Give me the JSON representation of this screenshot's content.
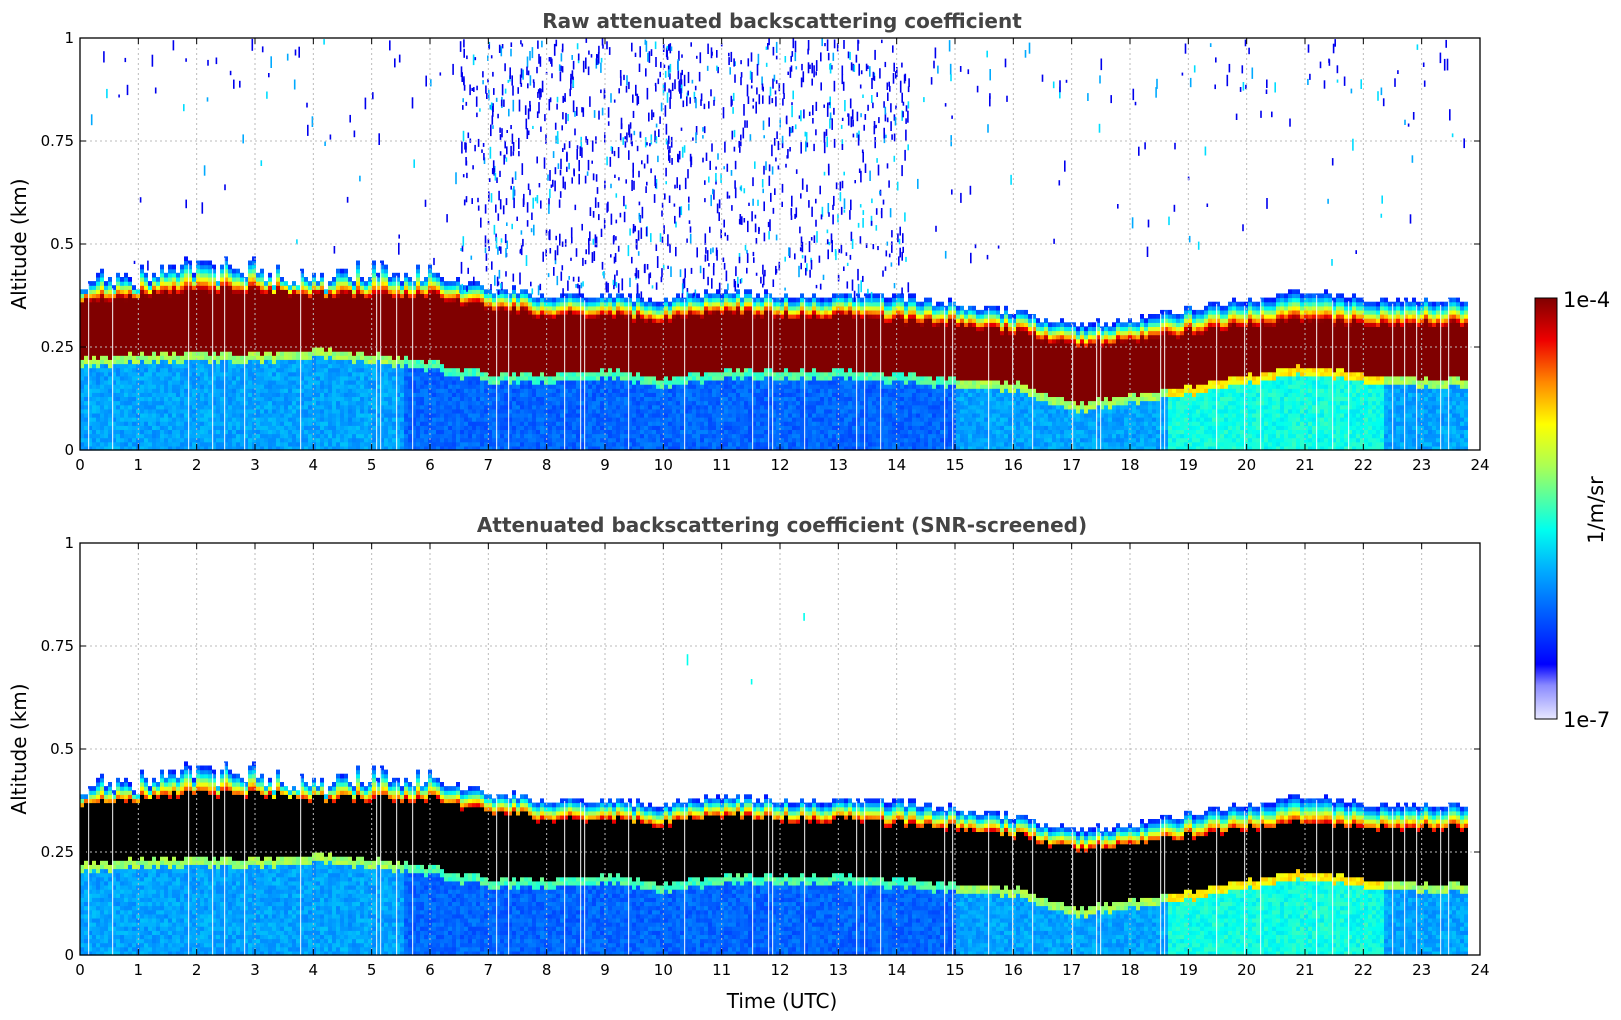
{
  "chart_data": [
    {
      "type": "heatmap",
      "title": "Raw attenuated backscattering coefficient",
      "xlabel": "",
      "ylabel": "Altitude (km)",
      "xlim": [
        0,
        24
      ],
      "ylim": [
        0,
        1
      ],
      "x_ticks": [
        "0",
        "1",
        "2",
        "3",
        "4",
        "5",
        "6",
        "7",
        "8",
        "9",
        "10",
        "11",
        "12",
        "13",
        "14",
        "15",
        "16",
        "17",
        "18",
        "19",
        "20",
        "21",
        "22",
        "23",
        "24"
      ],
      "y_ticks": [
        "0",
        "0.25",
        "0.5",
        "0.75",
        "1"
      ],
      "grid": true,
      "layer_top_km": [
        0.4,
        0.42,
        0.44,
        0.43,
        0.41,
        0.44,
        0.42,
        0.39,
        0.37,
        0.37,
        0.36,
        0.38,
        0.37,
        0.37,
        0.37,
        0.35,
        0.33,
        0.3,
        0.31,
        0.34,
        0.36,
        0.38,
        0.36,
        0.36
      ],
      "layer_core_top_km": [
        0.36,
        0.37,
        0.38,
        0.38,
        0.37,
        0.37,
        0.37,
        0.34,
        0.32,
        0.32,
        0.31,
        0.33,
        0.32,
        0.32,
        0.31,
        0.3,
        0.28,
        0.25,
        0.26,
        0.28,
        0.3,
        0.31,
        0.3,
        0.3
      ],
      "layer_core_bottom_km": [
        0.22,
        0.23,
        0.23,
        0.23,
        0.24,
        0.23,
        0.21,
        0.18,
        0.18,
        0.19,
        0.17,
        0.19,
        0.19,
        0.19,
        0.18,
        0.17,
        0.16,
        0.11,
        0.13,
        0.15,
        0.18,
        0.2,
        0.18,
        0.17
      ],
      "noise_region_hours": [
        6.5,
        14.2
      ]
    },
    {
      "type": "heatmap",
      "title": "Attenuated backscattering coefficient (SNR-screened)",
      "xlabel": "Time (UTC)",
      "ylabel": "Altitude (km)",
      "xlim": [
        0,
        24
      ],
      "ylim": [
        0,
        1
      ],
      "x_ticks": [
        "0",
        "1",
        "2",
        "3",
        "4",
        "5",
        "6",
        "7",
        "8",
        "9",
        "10",
        "11",
        "12",
        "13",
        "14",
        "15",
        "16",
        "17",
        "18",
        "19",
        "20",
        "21",
        "22",
        "23",
        "24"
      ],
      "y_ticks": [
        "0",
        "0.25",
        "0.5",
        "0.75",
        "1"
      ],
      "grid": true,
      "masked_color": "#000000"
    }
  ],
  "colorbar": {
    "label": "1/m/sr",
    "max_label": "1e-4",
    "min_label": "1e-7",
    "colormap": "jet"
  }
}
